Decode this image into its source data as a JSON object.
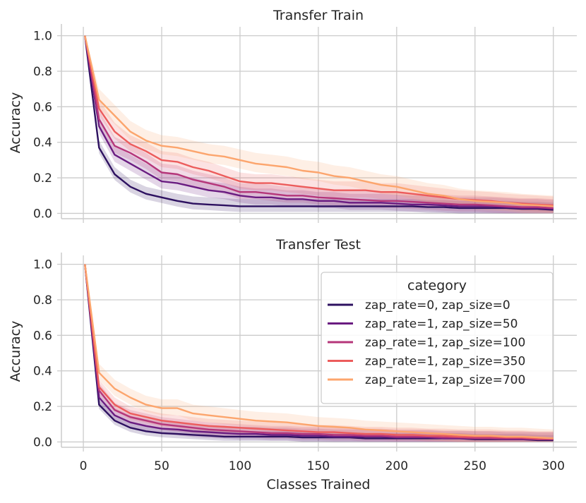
{
  "chart_data": {
    "type": "line",
    "xlabel": "Classes Trained",
    "x": [
      1,
      10,
      20,
      30,
      40,
      50,
      60,
      70,
      80,
      90,
      100,
      110,
      120,
      130,
      140,
      150,
      160,
      170,
      180,
      190,
      200,
      210,
      220,
      230,
      240,
      250,
      260,
      270,
      280,
      290,
      300
    ],
    "xticks": [
      0,
      50,
      100,
      150,
      200,
      250,
      300
    ],
    "xlim": [
      -14,
      315
    ],
    "legend": {
      "title": "category",
      "placement": "upper-right of bottom panel"
    },
    "colors": [
      "#2d1160",
      "#6a1c81",
      "#b5367a",
      "#ec5c5c",
      "#fca56d"
    ],
    "panels": [
      {
        "title": "Transfer Train",
        "ylabel": "Accuracy",
        "ylim": [
          -0.03,
          1.05
        ],
        "yticks": [
          "0.0",
          "0.2",
          "0.4",
          "0.6",
          "0.8",
          "1.0"
        ],
        "series": [
          {
            "name": "zap_rate=0, zap_size=0",
            "values": [
              1.0,
              0.37,
              0.22,
              0.15,
              0.11,
              0.09,
              0.07,
              0.055,
              0.05,
              0.045,
              0.04,
              0.04,
              0.04,
              0.04,
              0.04,
              0.04,
              0.04,
              0.04,
              0.04,
              0.04,
              0.04,
              0.04,
              0.035,
              0.035,
              0.03,
              0.03,
              0.03,
              0.03,
              0.025,
              0.025,
              0.02
            ],
            "band": 0.04
          },
          {
            "name": "zap_rate=1, zap_size=50",
            "values": [
              1.0,
              0.49,
              0.33,
              0.28,
              0.23,
              0.18,
              0.17,
              0.15,
              0.13,
              0.12,
              0.1,
              0.09,
              0.09,
              0.08,
              0.08,
              0.07,
              0.07,
              0.06,
              0.06,
              0.06,
              0.055,
              0.05,
              0.05,
              0.045,
              0.04,
              0.04,
              0.04,
              0.035,
              0.03,
              0.03,
              0.025
            ],
            "band": 0.05
          },
          {
            "name": "zap_rate=1, zap_size=100",
            "values": [
              1.0,
              0.53,
              0.38,
              0.34,
              0.29,
              0.23,
              0.22,
              0.19,
              0.17,
              0.15,
              0.12,
              0.12,
              0.11,
              0.1,
              0.1,
              0.09,
              0.085,
              0.08,
              0.075,
              0.07,
              0.07,
              0.065,
              0.06,
              0.055,
              0.05,
              0.05,
              0.045,
              0.04,
              0.035,
              0.035,
              0.03
            ],
            "band": 0.05
          },
          {
            "name": "zap_rate=1, zap_size=350",
            "values": [
              1.0,
              0.59,
              0.46,
              0.39,
              0.35,
              0.3,
              0.29,
              0.26,
              0.24,
              0.21,
              0.18,
              0.17,
              0.17,
              0.16,
              0.15,
              0.14,
              0.13,
              0.13,
              0.13,
              0.12,
              0.12,
              0.11,
              0.1,
              0.09,
              0.08,
              0.075,
              0.07,
              0.06,
              0.055,
              0.05,
              0.045
            ],
            "band": 0.05
          },
          {
            "name": "zap_rate=1, zap_size=700",
            "values": [
              1.0,
              0.64,
              0.55,
              0.46,
              0.41,
              0.38,
              0.37,
              0.35,
              0.33,
              0.32,
              0.3,
              0.28,
              0.27,
              0.26,
              0.24,
              0.23,
              0.21,
              0.2,
              0.18,
              0.16,
              0.15,
              0.13,
              0.11,
              0.1,
              0.08,
              0.07,
              0.065,
              0.06,
              0.05,
              0.045,
              0.04
            ],
            "band": 0.06
          }
        ]
      },
      {
        "title": "Transfer Test",
        "ylabel": "Accuracy",
        "ylim": [
          -0.03,
          1.05
        ],
        "yticks": [
          "0.0",
          "0.2",
          "0.4",
          "0.6",
          "0.8",
          "1.0"
        ],
        "series": [
          {
            "name": "zap_rate=0, zap_size=0",
            "values": [
              1.0,
              0.21,
              0.12,
              0.08,
              0.06,
              0.05,
              0.045,
              0.04,
              0.035,
              0.03,
              0.03,
              0.03,
              0.03,
              0.03,
              0.025,
              0.025,
              0.025,
              0.025,
              0.02,
              0.02,
              0.02,
              0.02,
              0.02,
              0.02,
              0.02,
              0.015,
              0.015,
              0.015,
              0.015,
              0.01,
              0.01
            ],
            "band": 0.03
          },
          {
            "name": "zap_rate=1, zap_size=50",
            "values": [
              1.0,
              0.25,
              0.15,
              0.11,
              0.09,
              0.075,
              0.07,
              0.06,
              0.055,
              0.05,
              0.045,
              0.045,
              0.04,
              0.04,
              0.035,
              0.035,
              0.03,
              0.03,
              0.03,
              0.03,
              0.025,
              0.025,
              0.025,
              0.02,
              0.02,
              0.02,
              0.02,
              0.015,
              0.015,
              0.015,
              0.015
            ],
            "band": 0.04
          },
          {
            "name": "zap_rate=1, zap_size=100",
            "values": [
              1.0,
              0.29,
              0.18,
              0.14,
              0.12,
              0.1,
              0.09,
              0.08,
              0.07,
              0.065,
              0.06,
              0.055,
              0.05,
              0.05,
              0.045,
              0.045,
              0.04,
              0.04,
              0.035,
              0.035,
              0.03,
              0.03,
              0.03,
              0.025,
              0.025,
              0.02,
              0.02,
              0.02,
              0.02,
              0.015,
              0.015
            ],
            "band": 0.04
          },
          {
            "name": "zap_rate=1, zap_size=350",
            "values": [
              1.0,
              0.31,
              0.21,
              0.16,
              0.14,
              0.12,
              0.11,
              0.1,
              0.09,
              0.085,
              0.08,
              0.075,
              0.07,
              0.065,
              0.06,
              0.055,
              0.055,
              0.05,
              0.045,
              0.045,
              0.04,
              0.04,
              0.035,
              0.035,
              0.03,
              0.03,
              0.03,
              0.025,
              0.025,
              0.02,
              0.02
            ],
            "band": 0.04
          },
          {
            "name": "zap_rate=1, zap_size=700",
            "values": [
              1.0,
              0.39,
              0.3,
              0.25,
              0.21,
              0.19,
              0.19,
              0.16,
              0.15,
              0.14,
              0.13,
              0.12,
              0.115,
              0.11,
              0.1,
              0.09,
              0.085,
              0.08,
              0.07,
              0.065,
              0.06,
              0.055,
              0.05,
              0.045,
              0.04,
              0.035,
              0.035,
              0.03,
              0.03,
              0.025,
              0.02
            ],
            "band": 0.05
          }
        ]
      }
    ]
  }
}
